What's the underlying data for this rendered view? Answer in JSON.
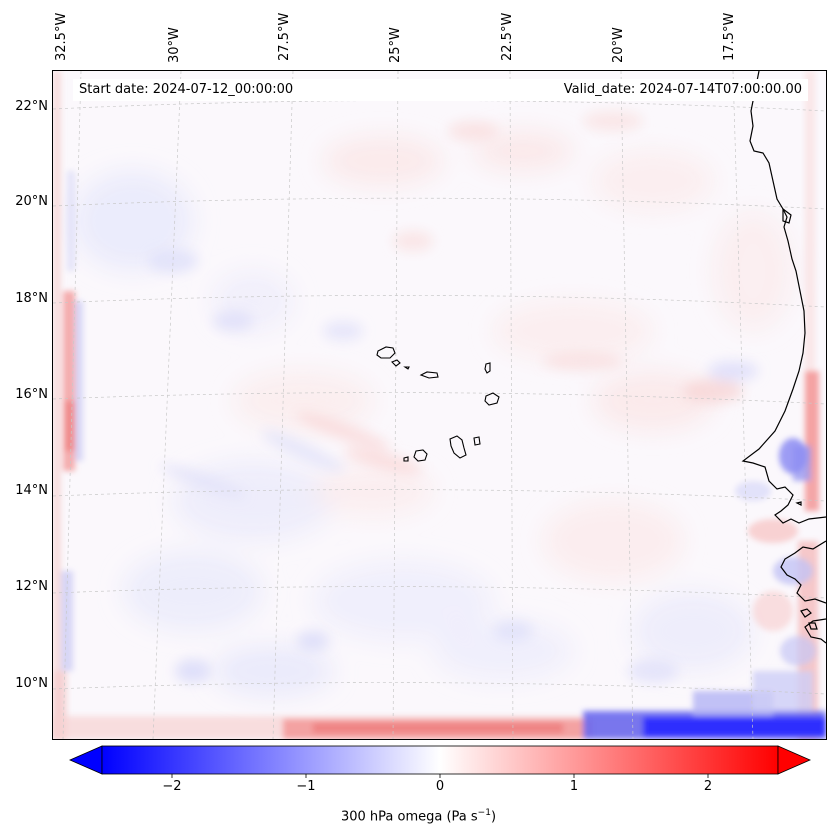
{
  "map": {
    "projection": "lambert-conformal",
    "lon_ticks": [
      "32.5°W",
      "30°W",
      "27.5°W",
      "25°W",
      "22.5°W",
      "20°W",
      "17.5°W"
    ],
    "lat_ticks": [
      "22°N",
      "20°N",
      "18°N",
      "16°N",
      "14°N",
      "12°N",
      "10°N"
    ],
    "start_date": "Start date: 2024-07-12_00:00:00",
    "valid_date": "Valid_date: 2024-07-14T07:00:00.00",
    "background_color": "#fbf8fc",
    "coastline_color": "#000000",
    "gridline_color": "#c8c8c8"
  },
  "colorbar": {
    "tick_labels": [
      "−2",
      "−1",
      "0",
      "1",
      "2"
    ],
    "tick_values": [
      -2,
      -1,
      0,
      1,
      2
    ],
    "vmin": -2.5,
    "vmax": 2.5,
    "title_text": "300 hPa omega (Pa s",
    "title_sup": "−1",
    "title_close": ")",
    "colormap": "bwr",
    "low_color": "#0000ff",
    "mid_color": "#ffffff",
    "high_color": "#ff0000"
  }
}
